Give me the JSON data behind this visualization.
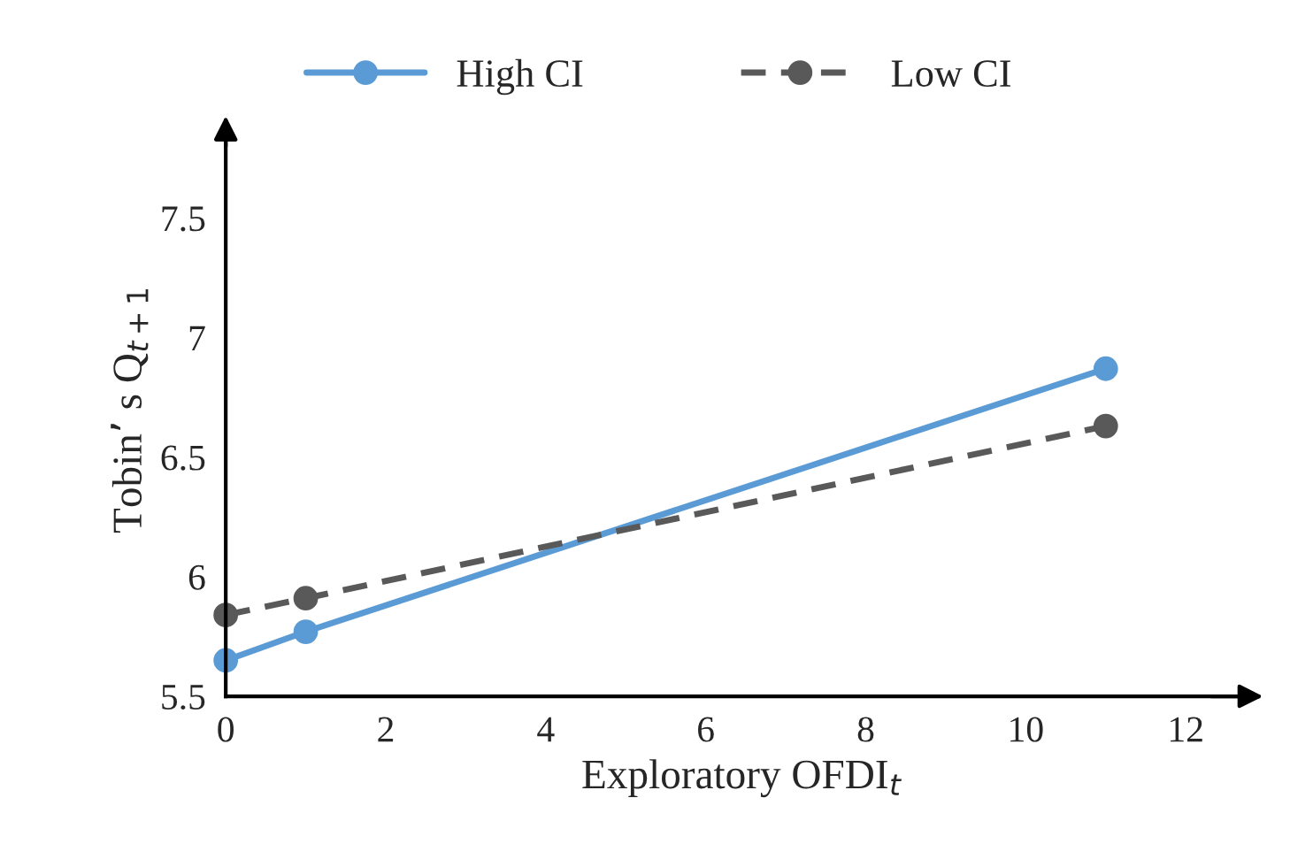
{
  "chart_data": {
    "type": "line",
    "xlabel": "Exploratory OFDI$_{t}$",
    "ylabel": "Tobin’ s Q$_{t+1}$",
    "x": [
      0,
      1,
      11
    ],
    "series": [
      {
        "name": "High CI",
        "color": "#5b9bd5",
        "values": [
          5.65,
          5.77,
          6.87
        ],
        "line_style": "solid"
      },
      {
        "name": "Low CI",
        "color": "#595959",
        "values": [
          5.84,
          5.91,
          6.63
        ],
        "line_style": "dashed"
      }
    ],
    "marker": "circle",
    "xlim": [
      0,
      12.9
    ],
    "ylim": [
      5.5,
      7.9
    ],
    "xticks": [
      0,
      2,
      4,
      6,
      8,
      10,
      12
    ],
    "yticks": [
      5.5,
      6,
      6.5,
      7,
      7.5
    ],
    "grid": false,
    "legend": "top"
  }
}
